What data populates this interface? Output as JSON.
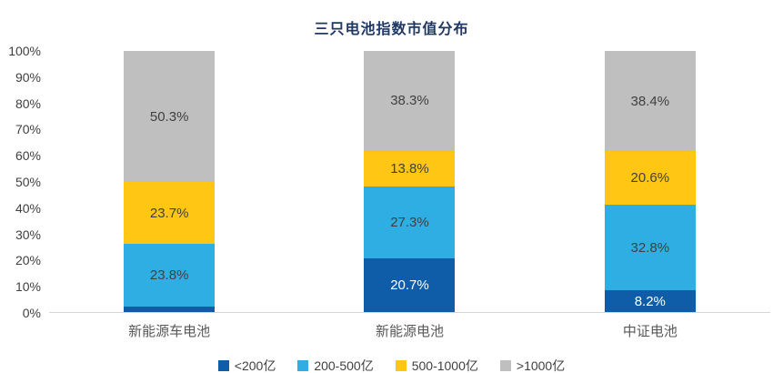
{
  "chart_data": {
    "type": "bar",
    "stacked": true,
    "percent": true,
    "title": "三只电池指数市值分布",
    "categories": [
      "新能源车电池",
      "新能源电池",
      "中证电池"
    ],
    "series": [
      {
        "name": "<200亿",
        "color": "#0F5CA8",
        "label_color": "#FFFFFF",
        "values": [
          2.2,
          20.7,
          8.2
        ]
      },
      {
        "name": "200-500亿",
        "color": "#2FAEE3",
        "label_color": "#404040",
        "values": [
          23.8,
          27.3,
          32.8
        ]
      },
      {
        "name": "500-1000亿",
        "color": "#FFC613",
        "label_color": "#404040",
        "values": [
          23.7,
          13.8,
          20.6
        ]
      },
      {
        "name": ">1000亿",
        "color": "#BFBFBF",
        "label_color": "#404040",
        "values": [
          50.3,
          38.3,
          38.4
        ]
      }
    ],
    "y_axis": {
      "min": 0,
      "max": 100,
      "step": 10,
      "suffix": "%"
    },
    "x_axis_labels": [
      "新能源车电池",
      "新能源电池",
      "中证电池"
    ],
    "legend_position": "bottom",
    "grid": false,
    "axis_line_color": "#D6D6D6",
    "title_color": "#1F3864"
  }
}
